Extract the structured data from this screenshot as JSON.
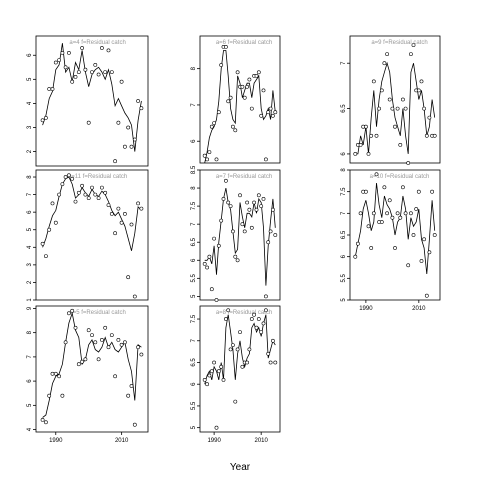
{
  "chart_data": {
    "type": "scatter",
    "xlabel": "Year",
    "xlim": [
      1984,
      2018
    ],
    "x_ticks": [
      1990,
      2010
    ],
    "panels": [
      {
        "label": "a=4  f=Residual catch",
        "ylim": [
          1.4,
          6.8
        ],
        "y_ticks": [
          2,
          3,
          4,
          5,
          6
        ],
        "x": [
          1986,
          1987,
          1988,
          1989,
          1990,
          1991,
          1992,
          1993,
          1994,
          1995,
          1996,
          1997,
          1998,
          1999,
          2000,
          2001,
          2002,
          2003,
          2004,
          2005,
          2006,
          2007,
          2008,
          2009,
          2010,
          2011,
          2012,
          2013,
          2014,
          2015,
          2016
        ],
        "observed": [
          3.3,
          3.4,
          4.6,
          4.6,
          5.7,
          5.8,
          6.1,
          5.5,
          6.1,
          4.9,
          5.1,
          5.3,
          6.3,
          5.4,
          3.2,
          5.3,
          5.6,
          5.2,
          6.3,
          5.3,
          6.2,
          5.3,
          1.6,
          3.2,
          4.9,
          2.2,
          3.0,
          2.2,
          2.5,
          4.1,
          3.8
        ],
        "fitted": [
          3.1,
          3.5,
          4.2,
          4.5,
          5.4,
          5.6,
          6.5,
          5.3,
          5.5,
          4.9,
          5.7,
          5.4,
          6.2,
          5.3,
          4.7,
          5.2,
          5.4,
          5.5,
          5.3,
          5.0,
          5.4,
          4.8,
          3.9,
          4.2,
          3.9,
          3.6,
          3.4,
          3.1,
          2.0,
          3.3,
          4.1
        ]
      },
      {
        "label": "a=5  f=Residual catch",
        "ylim": [
          3.9,
          9.1
        ],
        "y_ticks": [
          4,
          5,
          6,
          7,
          8,
          9
        ],
        "x": [
          1986,
          1987,
          1988,
          1989,
          1990,
          1991,
          1992,
          1993,
          1994,
          1995,
          1996,
          1997,
          1998,
          1999,
          2000,
          2001,
          2002,
          2003,
          2004,
          2005,
          2006,
          2007,
          2008,
          2009,
          2010,
          2011,
          2012,
          2013,
          2014,
          2015,
          2016
        ],
        "observed": [
          4.4,
          4.3,
          5.4,
          6.3,
          6.3,
          6.2,
          5.4,
          7.6,
          8.8,
          8.9,
          8.2,
          6.7,
          6.8,
          6.9,
          8.1,
          7.9,
          7.6,
          6.9,
          7.7,
          8.2,
          7.4,
          7.9,
          6.2,
          7.7,
          7.5,
          7.6,
          5.4,
          5.8,
          4.2,
          7.4,
          7.1
        ],
        "fitted": [
          4.5,
          4.6,
          5.2,
          5.9,
          6.2,
          6.3,
          6.7,
          7.6,
          8.4,
          8.8,
          8.1,
          7.8,
          6.7,
          6.9,
          7.5,
          7.7,
          7.3,
          7.2,
          7.4,
          7.8,
          7.4,
          7.6,
          7.3,
          7.2,
          7.4,
          7.6,
          6.9,
          6.4,
          5.2,
          7.5,
          7.4
        ]
      },
      {
        "label": "a=6  f=Residual catch",
        "ylim": [
          5.4,
          8.9
        ],
        "y_ticks": [
          6,
          7,
          8
        ],
        "x": [
          1986,
          1987,
          1988,
          1989,
          1990,
          1991,
          1992,
          1993,
          1994,
          1995,
          1996,
          1997,
          1998,
          1999,
          2000,
          2001,
          2002,
          2003,
          2004,
          2005,
          2006,
          2007,
          2008,
          2009,
          2010,
          2011,
          2012,
          2013,
          2014,
          2015,
          2016
        ],
        "observed": [
          5.6,
          5.5,
          5.7,
          6.4,
          6.5,
          5.5,
          6.8,
          8.1,
          8.6,
          8.6,
          7.1,
          7.2,
          6.4,
          6.3,
          7.9,
          7.5,
          7.5,
          7.2,
          7.5,
          7.7,
          6.9,
          7.8,
          7.8,
          7.9,
          6.7,
          7.4,
          5.5,
          6.8,
          6.9,
          6.7,
          6.8
        ],
        "fitted": [
          5.4,
          5.7,
          6.1,
          6.3,
          6.4,
          6.6,
          7.1,
          8.0,
          8.5,
          8.5,
          7.8,
          6.9,
          6.6,
          6.5,
          7.8,
          7.6,
          7.2,
          7.4,
          7.6,
          7.6,
          7.2,
          7.6,
          7.7,
          7.8,
          6.9,
          6.6,
          6.7,
          6.9,
          6.6,
          7.4,
          6.8
        ]
      },
      {
        "label": "a=7  f=Residual catch",
        "ylim": [
          4.9,
          8.5
        ],
        "y_ticks": [
          5.0,
          5.5,
          6.0,
          6.5,
          7.0,
          7.5,
          8.0,
          8.5
        ],
        "x": [
          1986,
          1987,
          1988,
          1989,
          1990,
          1991,
          1992,
          1993,
          1994,
          1995,
          1996,
          1997,
          1998,
          1999,
          2000,
          2001,
          2002,
          2003,
          2004,
          2005,
          2006,
          2007,
          2008,
          2009,
          2010,
          2011,
          2012,
          2013,
          2014,
          2015,
          2016
        ],
        "observed": [
          5.9,
          5.8,
          6.1,
          5.2,
          6.6,
          4.9,
          6.4,
          7.1,
          7.7,
          8.2,
          7.6,
          7.5,
          6.8,
          6.1,
          6.0,
          7.8,
          7.0,
          6.8,
          7.6,
          7.4,
          6.9,
          7.6,
          7.4,
          7.8,
          7.5,
          7.7,
          5.0,
          6.5,
          6.8,
          7.4,
          6.7
        ],
        "fitted": [
          6.0,
          6.0,
          6.1,
          5.9,
          6.4,
          5.6,
          6.5,
          7.1,
          7.7,
          8.0,
          7.6,
          7.4,
          6.8,
          6.2,
          6.3,
          7.6,
          7.2,
          6.9,
          7.3,
          7.3,
          7.2,
          7.6,
          7.3,
          7.7,
          7.6,
          6.9,
          5.3,
          6.4,
          7.1,
          7.7,
          6.9
        ]
      },
      {
        "label": "a=8  f=Residual catch",
        "ylim": [
          4.9,
          7.8
        ],
        "y_ticks": [
          5.0,
          5.5,
          6.0,
          6.5,
          7.0,
          7.5
        ],
        "x": [
          1986,
          1987,
          1988,
          1989,
          1990,
          1991,
          1992,
          1993,
          1994,
          1995,
          1996,
          1997,
          1998,
          1999,
          2000,
          2001,
          2002,
          2003,
          2004,
          2005,
          2006,
          2007,
          2008,
          2009,
          2010,
          2011,
          2012,
          2013,
          2014,
          2015,
          2016
        ],
        "observed": [
          6.1,
          6.0,
          6.2,
          6.3,
          6.5,
          5.0,
          6.3,
          6.4,
          6.1,
          7.5,
          7.7,
          6.8,
          6.9,
          5.6,
          6.8,
          7.2,
          6.4,
          6.5,
          6.5,
          6.8,
          7.5,
          7.6,
          7.3,
          7.5,
          7.2,
          7.4,
          7.7,
          6.7,
          6.5,
          7.0,
          6.5
        ],
        "fitted": [
          6.0,
          6.2,
          6.3,
          6.1,
          6.4,
          6.3,
          6.1,
          6.5,
          6.1,
          7.3,
          7.6,
          7.2,
          6.8,
          6.1,
          6.7,
          7.0,
          6.6,
          6.4,
          6.6,
          6.7,
          7.3,
          7.4,
          7.2,
          7.3,
          7.1,
          7.4,
          7.6,
          6.6,
          6.8,
          7.0,
          6.9
        ]
      },
      {
        "label": "a=9  f=Residual catch",
        "ylim": [
          5.9,
          7.3
        ],
        "y_ticks": [
          6.0,
          6.5,
          7.0
        ],
        "x": [
          1986,
          1987,
          1988,
          1989,
          1990,
          1991,
          1992,
          1993,
          1994,
          1995,
          1996,
          1997,
          1998,
          1999,
          2000,
          2001,
          2002,
          2003,
          2004,
          2005,
          2006,
          2007,
          2008,
          2009,
          2010,
          2011,
          2012,
          2013,
          2014,
          2015,
          2016
        ],
        "observed": [
          6.0,
          6.1,
          6.1,
          6.3,
          6.3,
          6.0,
          6.2,
          6.8,
          6.2,
          6.5,
          6.7,
          7.0,
          7.1,
          6.6,
          6.5,
          6.3,
          6.5,
          6.1,
          6.6,
          6.5,
          5.9,
          7.1,
          7.2,
          6.7,
          6.7,
          6.8,
          6.5,
          6.2,
          6.4,
          6.2,
          6.2
        ],
        "fitted": [
          6.0,
          6.0,
          6.2,
          6.1,
          6.3,
          6.0,
          6.4,
          6.7,
          6.3,
          6.6,
          6.8,
          6.9,
          7.0,
          6.9,
          6.6,
          6.4,
          6.3,
          6.2,
          6.5,
          6.2,
          6.0,
          6.9,
          7.0,
          6.8,
          6.6,
          6.7,
          6.5,
          6.2,
          6.3,
          6.6,
          6.4
        ]
      },
      {
        "label": "a=10  f=Residual catch",
        "ylim": [
          5.0,
          8.0
        ],
        "y_ticks": [
          5.0,
          5.5,
          6.0,
          6.5,
          7.0,
          7.5,
          8.0
        ],
        "x": [
          1986,
          1987,
          1988,
          1989,
          1990,
          1991,
          1992,
          1993,
          1994,
          1995,
          1996,
          1997,
          1998,
          1999,
          2000,
          2001,
          2002,
          2003,
          2004,
          2005,
          2006,
          2007,
          2008,
          2009,
          2010,
          2011,
          2012,
          2013,
          2014,
          2015,
          2016
        ],
        "observed": [
          6.0,
          6.3,
          7.0,
          7.5,
          7.5,
          6.7,
          6.2,
          7.0,
          7.9,
          6.8,
          6.8,
          7.6,
          7.0,
          7.3,
          6.9,
          6.2,
          7.0,
          6.9,
          7.6,
          7.0,
          5.8,
          7.0,
          6.5,
          7.1,
          7.5,
          5.9,
          6.4,
          5.1,
          6.1,
          7.5,
          6.5
        ],
        "fitted": [
          6.0,
          6.3,
          6.6,
          7.1,
          7.3,
          7.0,
          6.6,
          6.8,
          7.7,
          7.2,
          6.9,
          7.4,
          7.2,
          7.1,
          6.9,
          6.5,
          6.8,
          6.9,
          7.4,
          7.1,
          6.4,
          6.9,
          6.7,
          6.8,
          7.1,
          6.4,
          6.2,
          5.6,
          6.4,
          7.3,
          6.6
        ]
      },
      {
        "label": "a=11  f=Residual catch",
        "ylim": [
          1.0,
          8.4
        ],
        "y_ticks": [
          1,
          2,
          3,
          4,
          5,
          6,
          7,
          8
        ],
        "x": [
          1986,
          1987,
          1988,
          1989,
          1990,
          1991,
          1992,
          1993,
          1994,
          1995,
          1996,
          1997,
          1998,
          1999,
          2000,
          2001,
          2002,
          2003,
          2004,
          2005,
          2006,
          2007,
          2008,
          2009,
          2010,
          2011,
          2012,
          2013,
          2014,
          2015,
          2016
        ],
        "observed": [
          4.2,
          3.5,
          5.0,
          6.5,
          5.4,
          7.0,
          7.6,
          8.0,
          8.1,
          7.9,
          6.6,
          7.1,
          7.5,
          7.0,
          6.8,
          7.4,
          7.0,
          6.8,
          7.4,
          7.1,
          6.4,
          5.9,
          4.8,
          6.2,
          5.4,
          5.9,
          2.3,
          5.3,
          1.2,
          6.5,
          6.2
        ],
        "fitted": [
          4.0,
          4.5,
          5.2,
          5.8,
          6.1,
          6.9,
          7.6,
          7.9,
          8.0,
          7.6,
          6.8,
          7.0,
          7.4,
          7.1,
          6.9,
          7.3,
          7.0,
          6.9,
          7.2,
          7.0,
          6.6,
          6.1,
          5.8,
          6.0,
          5.6,
          5.2,
          4.5,
          3.8,
          4.8,
          6.3,
          6.1
        ]
      }
    ]
  }
}
